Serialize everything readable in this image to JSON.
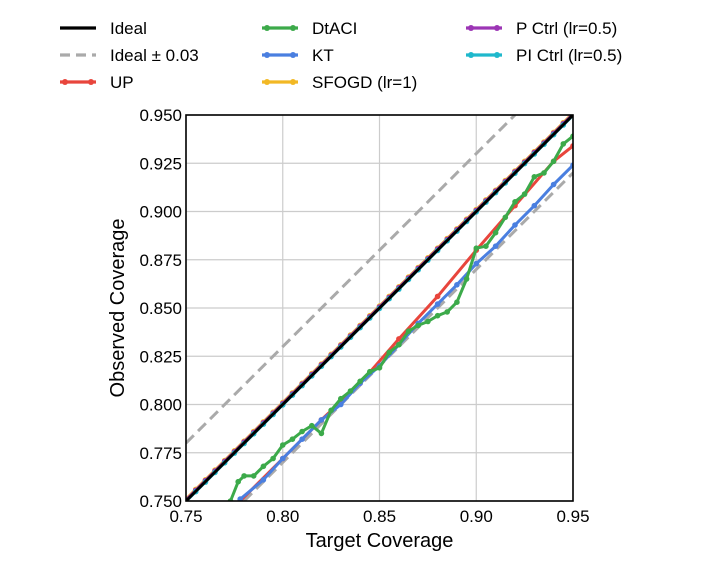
{
  "chart_data": {
    "type": "line",
    "title": "",
    "xlabel": "Target Coverage",
    "ylabel": "Observed Coverage",
    "xlim": [
      0.75,
      0.95
    ],
    "ylim": [
      0.75,
      0.95
    ],
    "grid": true,
    "legend_position": "top",
    "xticks": [
      "0.75",
      "0.80",
      "0.85",
      "0.90",
      "0.95"
    ],
    "yticks": [
      "0.750",
      "0.775",
      "0.800",
      "0.825",
      "0.850",
      "0.875",
      "0.900",
      "0.925",
      "0.950"
    ],
    "series": [
      {
        "name": "Ideal",
        "color": "#000000",
        "style": "solid",
        "marker": false,
        "x": [
          0.75,
          0.95
        ],
        "y": [
          0.75,
          0.95
        ]
      },
      {
        "name": "Ideal ± 0.03",
        "color": "#aaaaaa",
        "style": "dashed",
        "marker": false,
        "bands": [
          {
            "x": [
              0.75,
              0.92
            ],
            "y": [
              0.78,
              0.95
            ]
          },
          {
            "x": [
              0.78,
              0.95
            ],
            "y": [
              0.75,
              0.92
            ]
          }
        ]
      },
      {
        "name": "UP",
        "color": "#e8453c",
        "style": "solid",
        "marker": true,
        "x": [
          0.778,
          0.8,
          0.82,
          0.84,
          0.86,
          0.88,
          0.9,
          0.92,
          0.94,
          0.95
        ],
        "y": [
          0.75,
          0.772,
          0.792,
          0.811,
          0.834,
          0.856,
          0.88,
          0.903,
          0.926,
          0.934
        ]
      },
      {
        "name": "DtACI",
        "color": "#3caa4a",
        "style": "solid",
        "marker": true,
        "x": [
          0.773,
          0.777,
          0.78,
          0.785,
          0.79,
          0.795,
          0.8,
          0.805,
          0.81,
          0.815,
          0.82,
          0.825,
          0.83,
          0.835,
          0.84,
          0.845,
          0.85,
          0.855,
          0.86,
          0.865,
          0.87,
          0.875,
          0.88,
          0.885,
          0.89,
          0.895,
          0.9,
          0.905,
          0.91,
          0.915,
          0.92,
          0.925,
          0.93,
          0.935,
          0.94,
          0.945,
          0.95
        ],
        "y": [
          0.75,
          0.76,
          0.763,
          0.763,
          0.768,
          0.772,
          0.779,
          0.782,
          0.786,
          0.789,
          0.785,
          0.797,
          0.803,
          0.807,
          0.812,
          0.817,
          0.819,
          0.827,
          0.831,
          0.838,
          0.841,
          0.843,
          0.846,
          0.848,
          0.853,
          0.865,
          0.881,
          0.882,
          0.889,
          0.897,
          0.905,
          0.909,
          0.918,
          0.92,
          0.926,
          0.935,
          0.939
        ]
      },
      {
        "name": "KT",
        "color": "#4a7fe0",
        "style": "solid",
        "marker": true,
        "x": [
          0.778,
          0.79,
          0.8,
          0.81,
          0.82,
          0.83,
          0.84,
          0.85,
          0.86,
          0.87,
          0.88,
          0.89,
          0.9,
          0.91,
          0.92,
          0.93,
          0.94,
          0.95
        ],
        "y": [
          0.751,
          0.761,
          0.772,
          0.782,
          0.792,
          0.8,
          0.811,
          0.82,
          0.831,
          0.842,
          0.852,
          0.862,
          0.873,
          0.882,
          0.893,
          0.903,
          0.914,
          0.924
        ]
      },
      {
        "name": "SFOGD (lr=1)",
        "color": "#f2b824",
        "style": "solid",
        "marker": true,
        "x": [
          0.75,
          0.95
        ],
        "y": [
          0.751,
          0.951
        ]
      },
      {
        "name": "P Ctrl (lr=0.5)",
        "color": "#9c35b5",
        "style": "solid",
        "marker": true,
        "x": [
          0.75,
          0.95
        ],
        "y": [
          0.7505,
          0.9505
        ]
      },
      {
        "name": "PI Ctrl (lr=0.5)",
        "color": "#1fb8cc",
        "style": "solid",
        "marker": true,
        "x": [
          0.75,
          0.95
        ],
        "y": [
          0.7498,
          0.9498
        ]
      }
    ]
  }
}
